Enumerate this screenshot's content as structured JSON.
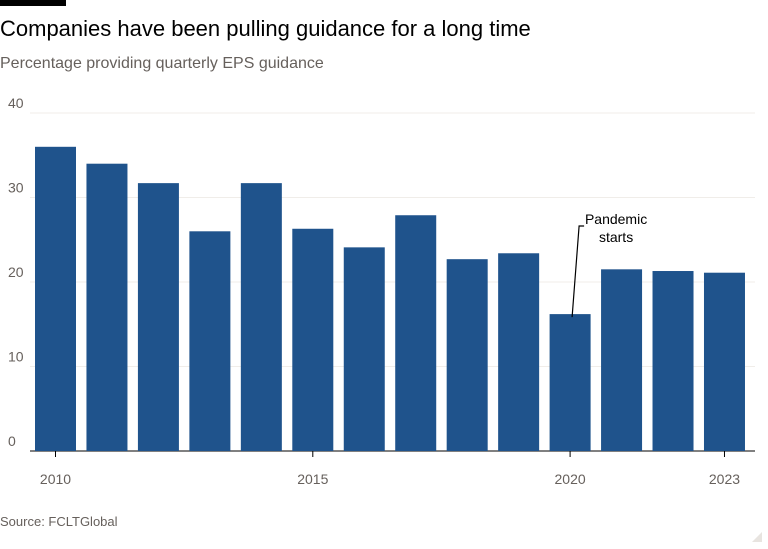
{
  "chart_data": {
    "type": "bar",
    "title": "Companies have been pulling guidance for a long time",
    "subtitle": "Percentage providing quarterly EPS guidance",
    "categories": [
      "2010",
      "2011",
      "2012",
      "2013",
      "2014",
      "2015",
      "2016",
      "2017",
      "2018",
      "2019",
      "2020",
      "2021",
      "2022",
      "2023"
    ],
    "values": [
      36.0,
      34.0,
      31.7,
      26.0,
      31.7,
      26.3,
      24.1,
      27.9,
      22.7,
      23.4,
      16.2,
      21.5,
      21.3,
      21.1
    ],
    "xtick_labels": [
      "2010",
      "2015",
      "2020",
      "2023"
    ],
    "yticks": [
      0,
      10,
      20,
      30,
      40
    ],
    "ylim": [
      0,
      40
    ],
    "grid": true,
    "bar_color": "#1f538c",
    "annotation": {
      "category": "2020",
      "lines": [
        "Pandemic",
        "starts"
      ]
    },
    "source": "Source: FCLTGlobal"
  }
}
